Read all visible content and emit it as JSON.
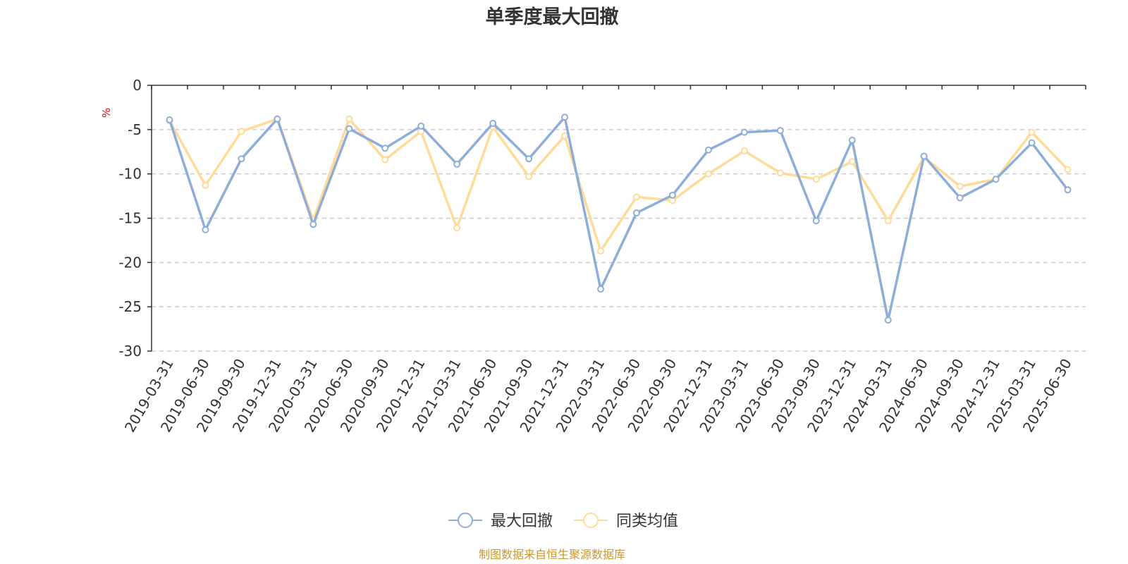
{
  "chart_data": {
    "type": "line",
    "title": "单季度最大回撤",
    "ylabel": "%",
    "ylim": [
      -30,
      0
    ],
    "yticks": [
      0,
      -5,
      -10,
      -15,
      -20,
      -25,
      -30
    ],
    "grid": true,
    "legend_position": "bottom",
    "categories": [
      "2019-03-31",
      "2019-06-30",
      "2019-09-30",
      "2019-12-31",
      "2020-03-31",
      "2020-06-30",
      "2020-09-30",
      "2020-12-31",
      "2021-03-31",
      "2021-06-30",
      "2021-09-30",
      "2021-12-31",
      "2022-03-31",
      "2022-06-30",
      "2022-09-30",
      "2022-12-31",
      "2023-03-31",
      "2023-06-30",
      "2023-09-30",
      "2023-12-31",
      "2024-03-31",
      "2024-06-30",
      "2024-09-30",
      "2024-12-31",
      "2025-03-31",
      "2025-06-30"
    ],
    "series": [
      {
        "name": "最大回撤",
        "color": "#8eaed8",
        "values": [
          -3.9,
          -16.3,
          -8.3,
          -3.8,
          -15.7,
          -4.9,
          -7.1,
          -4.6,
          -8.9,
          -4.3,
          -8.3,
          -3.6,
          -23.0,
          -14.4,
          -12.4,
          -7.3,
          -5.3,
          -5.1,
          -15.3,
          -6.2,
          -26.5,
          -8.0,
          -12.7,
          -10.6,
          -6.5,
          -11.8
        ]
      },
      {
        "name": "同类均值",
        "color": "#ffdb99",
        "values": [
          -4.0,
          -11.3,
          -5.2,
          -3.8,
          -15.2,
          -3.8,
          -8.4,
          -5.2,
          -16.1,
          -4.7,
          -10.3,
          -5.7,
          -18.7,
          -12.6,
          -13.0,
          -10.0,
          -7.4,
          -9.9,
          -10.6,
          -8.6,
          -15.3,
          -8.1,
          -11.4,
          -10.6,
          -5.3,
          -9.5
        ]
      }
    ],
    "source_note": "制图数据来自恒生聚源数据库"
  },
  "colors": {
    "axis": "#333333",
    "grid": "#cccccc",
    "unit_label": "#e60000",
    "source_note": "#c9962b"
  }
}
